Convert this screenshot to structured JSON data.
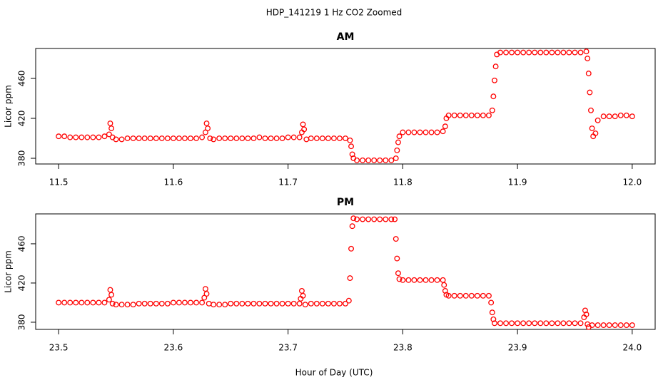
{
  "title": "HDP_141219  1 Hz CO2 Zoomed",
  "x_label": "Hour of Day (UTC)",
  "chart_data": [
    {
      "type": "scatter",
      "title": "AM",
      "y_label": "Licor ppm",
      "color": "#ff0000",
      "xlim": [
        11.48,
        12.02
      ],
      "ylim": [
        374.3,
        490
      ],
      "xticks": [
        11.5,
        11.6,
        11.7,
        11.8,
        11.9,
        {
          "value": 12,
          "label": "12.0"
        }
      ],
      "yticks": [
        380,
        420,
        460
      ],
      "x": [
        11.5,
        11.505,
        11.51,
        11.515,
        11.52,
        11.525,
        11.53,
        11.535,
        11.54,
        11.544,
        11.545,
        11.546,
        11.547,
        11.55,
        11.555,
        11.56,
        11.565,
        11.57,
        11.575,
        11.58,
        11.585,
        11.59,
        11.595,
        11.6,
        11.605,
        11.61,
        11.615,
        11.62,
        11.625,
        11.628,
        11.629,
        11.63,
        11.632,
        11.635,
        11.64,
        11.645,
        11.65,
        11.655,
        11.66,
        11.665,
        11.67,
        11.675,
        11.68,
        11.685,
        11.69,
        11.695,
        11.7,
        11.705,
        11.71,
        11.712,
        11.713,
        11.714,
        11.716,
        11.72,
        11.725,
        11.73,
        11.735,
        11.74,
        11.745,
        11.75,
        11.754,
        11.755,
        11.756,
        11.757,
        11.76,
        11.765,
        11.77,
        11.775,
        11.78,
        11.785,
        11.79,
        11.794,
        11.795,
        11.796,
        11.797,
        11.8,
        11.805,
        11.81,
        11.815,
        11.82,
        11.825,
        11.83,
        11.835,
        11.837,
        11.838,
        11.84,
        11.845,
        11.85,
        11.855,
        11.86,
        11.865,
        11.87,
        11.875,
        11.878,
        11.879,
        11.88,
        11.881,
        11.882,
        11.885,
        11.89,
        11.895,
        11.9,
        11.905,
        11.91,
        11.915,
        11.92,
        11.925,
        11.93,
        11.935,
        11.94,
        11.945,
        11.95,
        11.955,
        11.96,
        11.961,
        11.962,
        11.963,
        11.964,
        11.965,
        11.966,
        11.968,
        11.97,
        11.975,
        11.98,
        11.985,
        11.99,
        11.995,
        12.0
      ],
      "values": [
        402,
        402,
        401,
        401,
        401,
        401,
        401,
        401,
        402,
        404,
        415,
        410,
        401,
        399,
        399,
        400,
        400,
        400,
        400,
        400,
        400,
        400,
        400,
        400,
        400,
        400,
        400,
        400,
        401,
        406,
        415,
        410,
        400,
        399,
        400,
        400,
        400,
        400,
        400,
        400,
        400,
        401,
        400,
        400,
        400,
        400,
        401,
        401,
        401,
        406,
        414,
        409,
        399,
        400,
        400,
        400,
        400,
        400,
        400,
        400,
        398,
        392,
        384,
        380,
        378,
        378,
        378,
        378,
        378,
        378,
        378,
        380,
        388,
        396,
        402,
        406,
        406,
        406,
        406,
        406,
        406,
        406,
        407,
        412,
        420,
        423,
        423,
        423,
        423,
        423,
        423,
        423,
        423,
        428,
        442,
        458,
        472,
        484,
        486,
        486,
        486,
        486,
        486,
        486,
        486,
        486,
        486,
        486,
        486,
        486,
        486,
        486,
        486,
        487,
        480,
        465,
        446,
        428,
        410,
        402,
        405,
        418,
        422,
        422,
        422,
        423,
        423,
        422
      ]
    },
    {
      "type": "scatter",
      "title": "PM",
      "y_label": "Licor ppm",
      "color": "#ff0000",
      "xlim": [
        23.48,
        24.02
      ],
      "ylim": [
        372.7,
        490.5
      ],
      "xticks": [
        23.5,
        23.6,
        23.7,
        23.8,
        23.9,
        {
          "value": 24,
          "label": "24.0"
        }
      ],
      "yticks": [
        380,
        420,
        460
      ],
      "x": [
        23.5,
        23.505,
        23.51,
        23.515,
        23.52,
        23.525,
        23.53,
        23.535,
        23.54,
        23.544,
        23.545,
        23.546,
        23.547,
        23.55,
        23.555,
        23.56,
        23.565,
        23.57,
        23.575,
        23.58,
        23.585,
        23.59,
        23.595,
        23.6,
        23.605,
        23.61,
        23.615,
        23.62,
        23.625,
        23.627,
        23.628,
        23.629,
        23.631,
        23.635,
        23.64,
        23.645,
        23.65,
        23.655,
        23.66,
        23.665,
        23.67,
        23.675,
        23.68,
        23.685,
        23.69,
        23.695,
        23.7,
        23.705,
        23.71,
        23.711,
        23.712,
        23.713,
        23.715,
        23.72,
        23.725,
        23.73,
        23.735,
        23.74,
        23.745,
        23.75,
        23.753,
        23.754,
        23.755,
        23.756,
        23.757,
        23.76,
        23.765,
        23.77,
        23.775,
        23.78,
        23.785,
        23.79,
        23.793,
        23.794,
        23.795,
        23.796,
        23.797,
        23.8,
        23.805,
        23.81,
        23.815,
        23.82,
        23.825,
        23.83,
        23.835,
        23.836,
        23.837,
        23.838,
        23.84,
        23.845,
        23.85,
        23.855,
        23.86,
        23.865,
        23.87,
        23.875,
        23.877,
        23.878,
        23.879,
        23.88,
        23.885,
        23.89,
        23.895,
        23.9,
        23.905,
        23.91,
        23.915,
        23.92,
        23.925,
        23.93,
        23.935,
        23.94,
        23.945,
        23.95,
        23.955,
        23.958,
        23.959,
        23.96,
        23.961,
        23.962,
        23.965,
        23.97,
        23.975,
        23.98,
        23.985,
        23.99,
        23.995,
        24.0
      ],
      "values": [
        400,
        400,
        400,
        400,
        400,
        400,
        400,
        400,
        400,
        403,
        413,
        408,
        399,
        398,
        398,
        398,
        398,
        399,
        399,
        399,
        399,
        399,
        399,
        400,
        400,
        400,
        400,
        400,
        400,
        405,
        414,
        409,
        399,
        398,
        398,
        398,
        399,
        399,
        399,
        399,
        399,
        399,
        399,
        399,
        399,
        399,
        399,
        399,
        399,
        404,
        412,
        407,
        398,
        399,
        399,
        399,
        399,
        399,
        399,
        399,
        402,
        425,
        455,
        478,
        486,
        485,
        485,
        485,
        485,
        485,
        485,
        485,
        485,
        465,
        445,
        430,
        424,
        423,
        423,
        423,
        423,
        423,
        423,
        423,
        423,
        418,
        412,
        408,
        407,
        407,
        407,
        407,
        407,
        407,
        407,
        407,
        400,
        390,
        383,
        379,
        379,
        379,
        379,
        379,
        379,
        379,
        379,
        379,
        379,
        379,
        379,
        379,
        379,
        379,
        379,
        385,
        392,
        388,
        378,
        375,
        377,
        377,
        377,
        377,
        377,
        377,
        377,
        377
      ]
    }
  ]
}
